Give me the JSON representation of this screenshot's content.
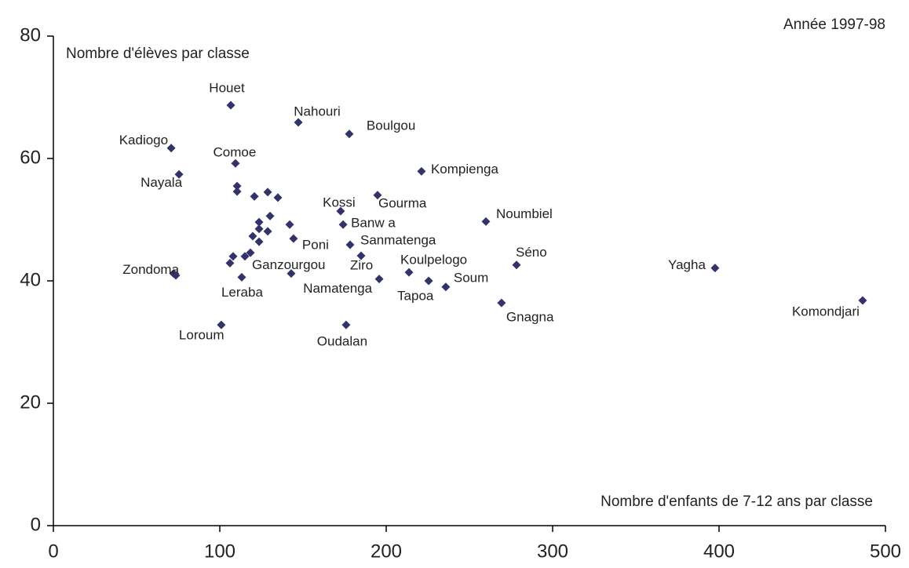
{
  "chart_data": {
    "type": "scatter",
    "title": "Année 1997-98",
    "ylabel": "Nombre d'élèves par classe",
    "xlabel": "Nombre d'enfants de 7-12 ans par classe",
    "color": "#33336b",
    "xlim": [
      0,
      500
    ],
    "xticks": [
      0,
      100,
      200,
      300,
      400,
      500
    ],
    "ylim": [
      0,
      80
    ],
    "yticks": [
      0,
      20,
      40,
      60,
      80
    ],
    "labels": [
      "Houet",
      "Nahouri",
      "Boulgou",
      "Kadiogo",
      "Comoe",
      "Nayala",
      "Kompienga",
      "Gourma",
      "Kossi",
      "Banw a",
      "Noumbiel",
      "Sanmatenga",
      "Poni",
      "Ziro",
      "Séno",
      "Yagha",
      "Komondjari",
      "Koulpelogo",
      "Tapoa",
      "Soum",
      "Gnagna",
      "Namatenga",
      "Ganzourgou",
      "Zondoma",
      "Leraba",
      "Loroum",
      "Oudalan",
      null,
      null,
      null,
      null,
      null,
      null,
      null,
      null,
      null,
      null,
      null,
      null,
      null,
      null,
      null,
      null,
      null
    ],
    "x": [
      106.6,
      147.2,
      177.8,
      70.8,
      109.4,
      75.5,
      221.2,
      194.8,
      172.6,
      174.1,
      259.9,
      178.3,
      144.3,
      184.9,
      278.3,
      397.6,
      486.3,
      213.7,
      225.5,
      235.8,
      269.3,
      195.8,
      142.9,
      72.2,
      113.2,
      100.9,
      175.9,
      110.4,
      110.4,
      120.8,
      128.8,
      134.9,
      123.6,
      130.2,
      123.6,
      128.8,
      119.8,
      123.6,
      142.0,
      108.0,
      106.1,
      115.1,
      118.4,
      73.6
    ],
    "y": [
      68.7,
      65.9,
      64.0,
      61.7,
      59.2,
      57.4,
      57.9,
      54.0,
      51.4,
      49.2,
      49.7,
      45.9,
      46.9,
      44.1,
      42.6,
      42.1,
      36.8,
      41.4,
      40.0,
      39.0,
      36.4,
      40.3,
      41.2,
      41.2,
      40.6,
      32.8,
      32.8,
      55.5,
      54.6,
      53.8,
      54.5,
      53.6,
      49.6,
      50.6,
      48.5,
      48.1,
      47.3,
      46.4,
      49.2,
      44.0,
      42.9,
      44.0,
      44.6,
      40.9
    ]
  }
}
